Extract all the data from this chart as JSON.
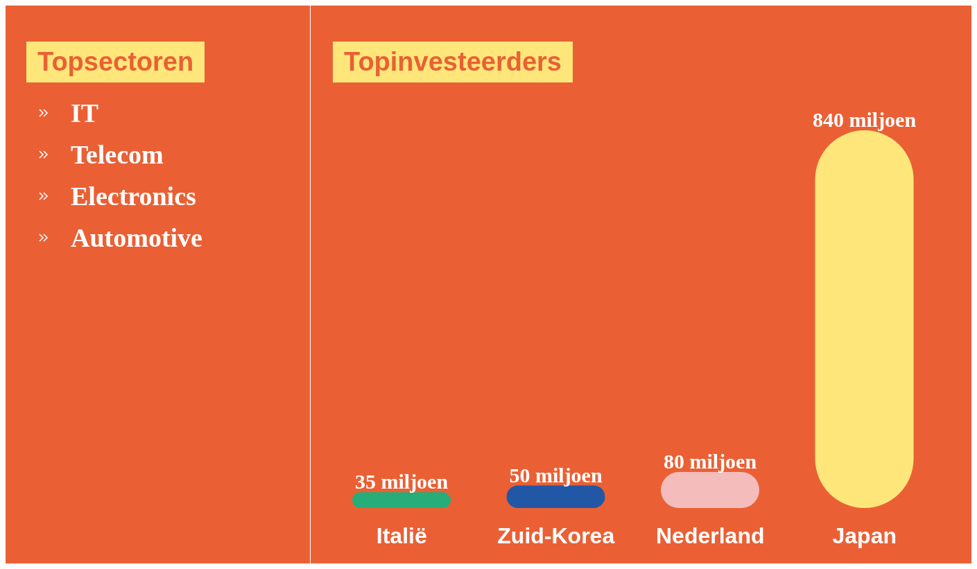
{
  "chart_data": [
    {
      "type": "other",
      "title": "Topsectoren",
      "annotations": [
        "IT",
        "Telecom",
        "Electronics",
        "Automotive"
      ]
    },
    {
      "type": "bar",
      "title": "Topinvesteerders",
      "categories": [
        "Italië",
        "Zuid-Korea",
        "Nederland",
        "Japan"
      ],
      "values": [
        35,
        50,
        80,
        840
      ],
      "colors": [
        "#27ad7a",
        "#2257a5",
        "#f5bcbc",
        "#fee67a"
      ],
      "value_labels": [
        "35 miljoen",
        "50 miljoen",
        "80 miljoen",
        "840 miljoen"
      ]
    }
  ]
}
